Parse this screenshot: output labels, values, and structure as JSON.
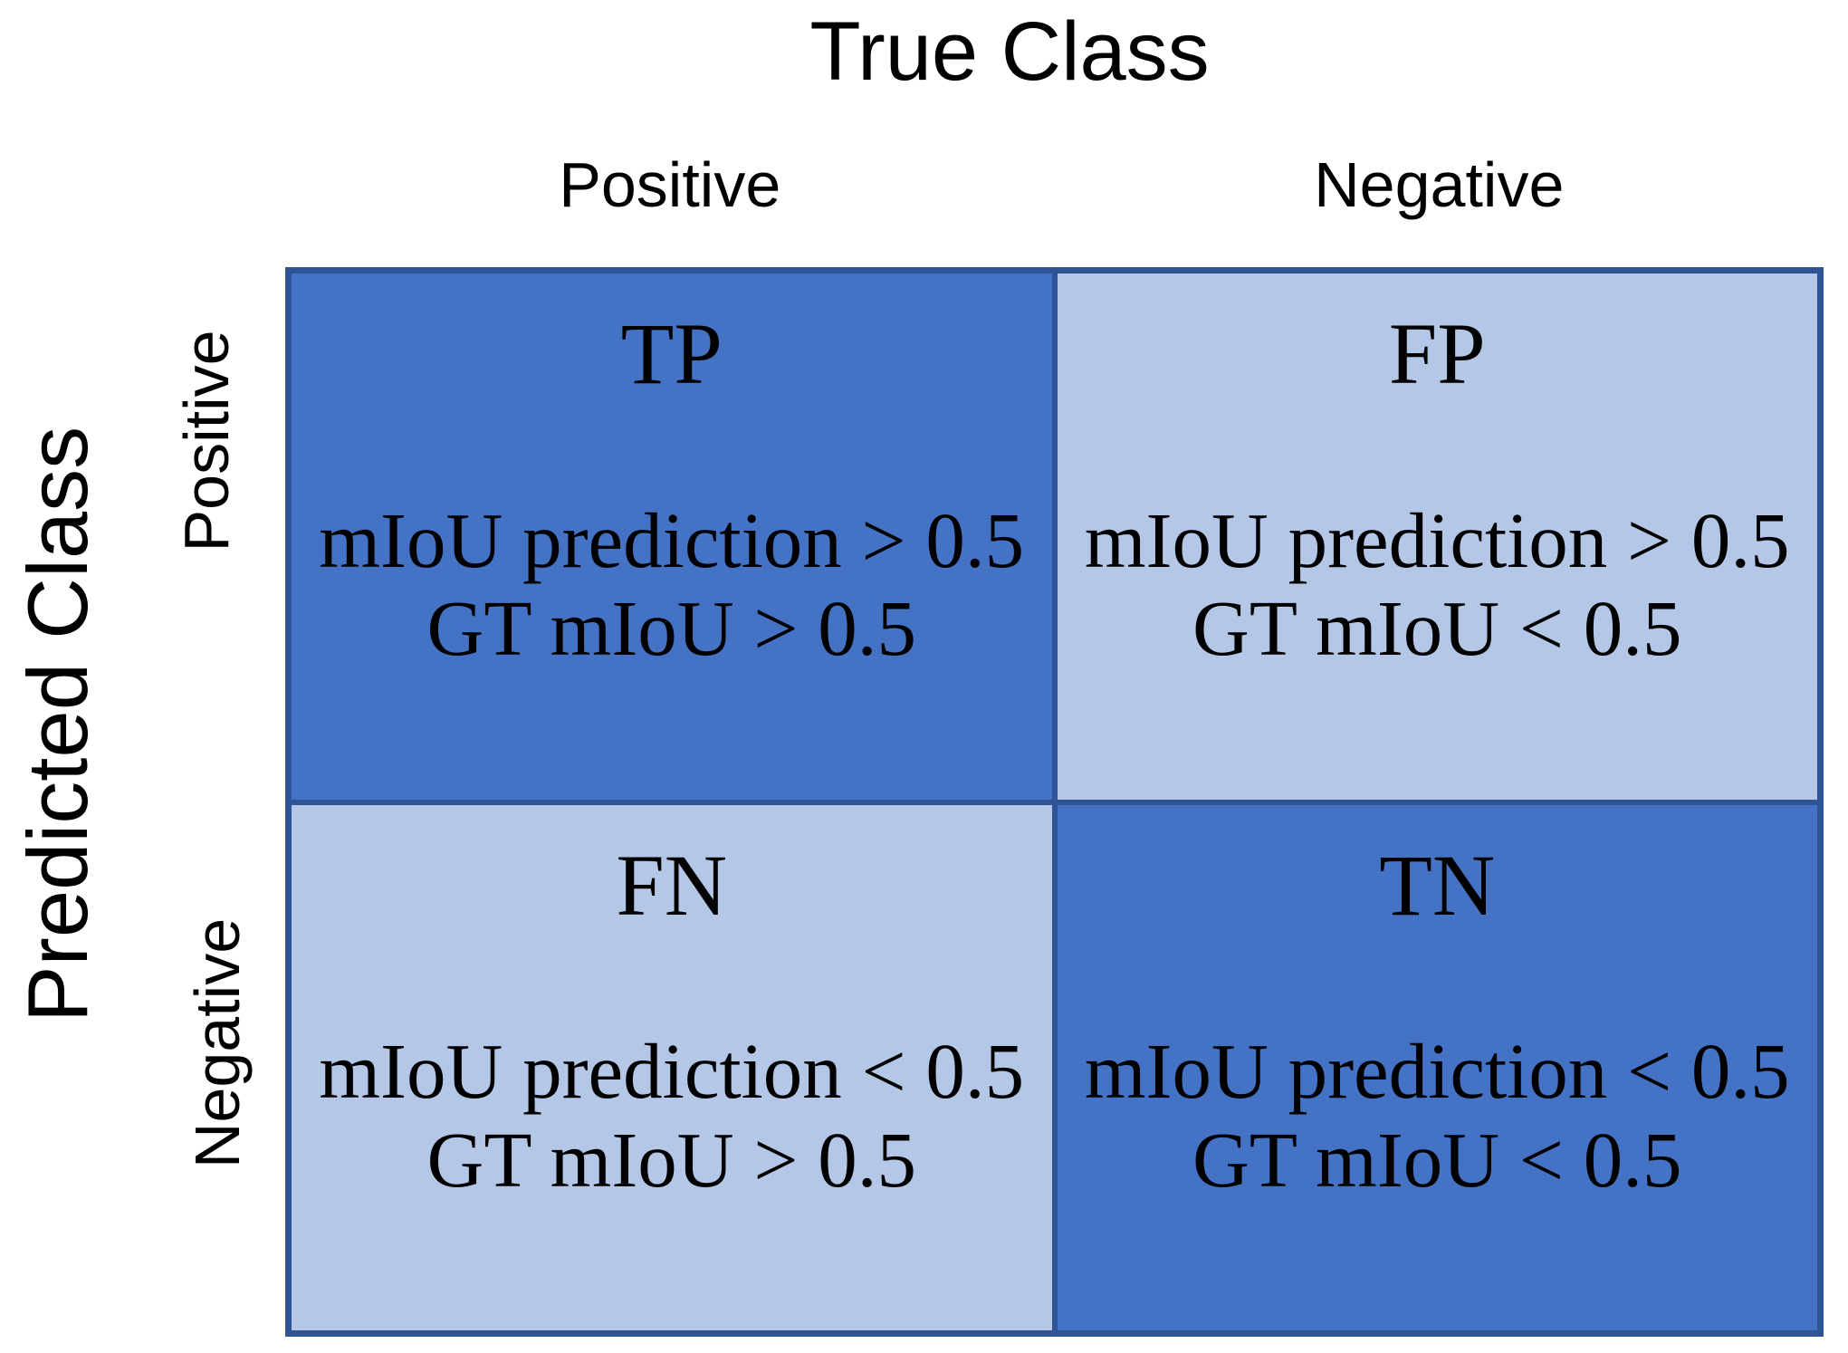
{
  "figure": {
    "x_axis_title": "True Class",
    "y_axis_title": "Predicted Class",
    "column_headers": [
      "Positive",
      "Negative"
    ],
    "row_headers": [
      "Positive",
      "Negative"
    ]
  },
  "matrix": {
    "cells": [
      {
        "abbr": "TP",
        "conditions": [
          "mIoU prediction > 0.5",
          "GT mIoU > 0.5"
        ],
        "tone": "dark"
      },
      {
        "abbr": "FP",
        "conditions": [
          "mIoU prediction > 0.5",
          "GT mIoU < 0.5"
        ],
        "tone": "light"
      },
      {
        "abbr": "FN",
        "conditions": [
          "mIoU prediction < 0.5",
          "GT mIoU > 0.5"
        ],
        "tone": "light"
      },
      {
        "abbr": "TN",
        "conditions": [
          "mIoU prediction < 0.5",
          "GT mIoU < 0.5"
        ],
        "tone": "dark"
      }
    ]
  },
  "colors": {
    "cell_dark_blue": "#4472C4",
    "cell_light_blue": "#B4C7E7",
    "grid_border": "#2F5496",
    "text": "#000000",
    "background": "#FFFFFF"
  }
}
